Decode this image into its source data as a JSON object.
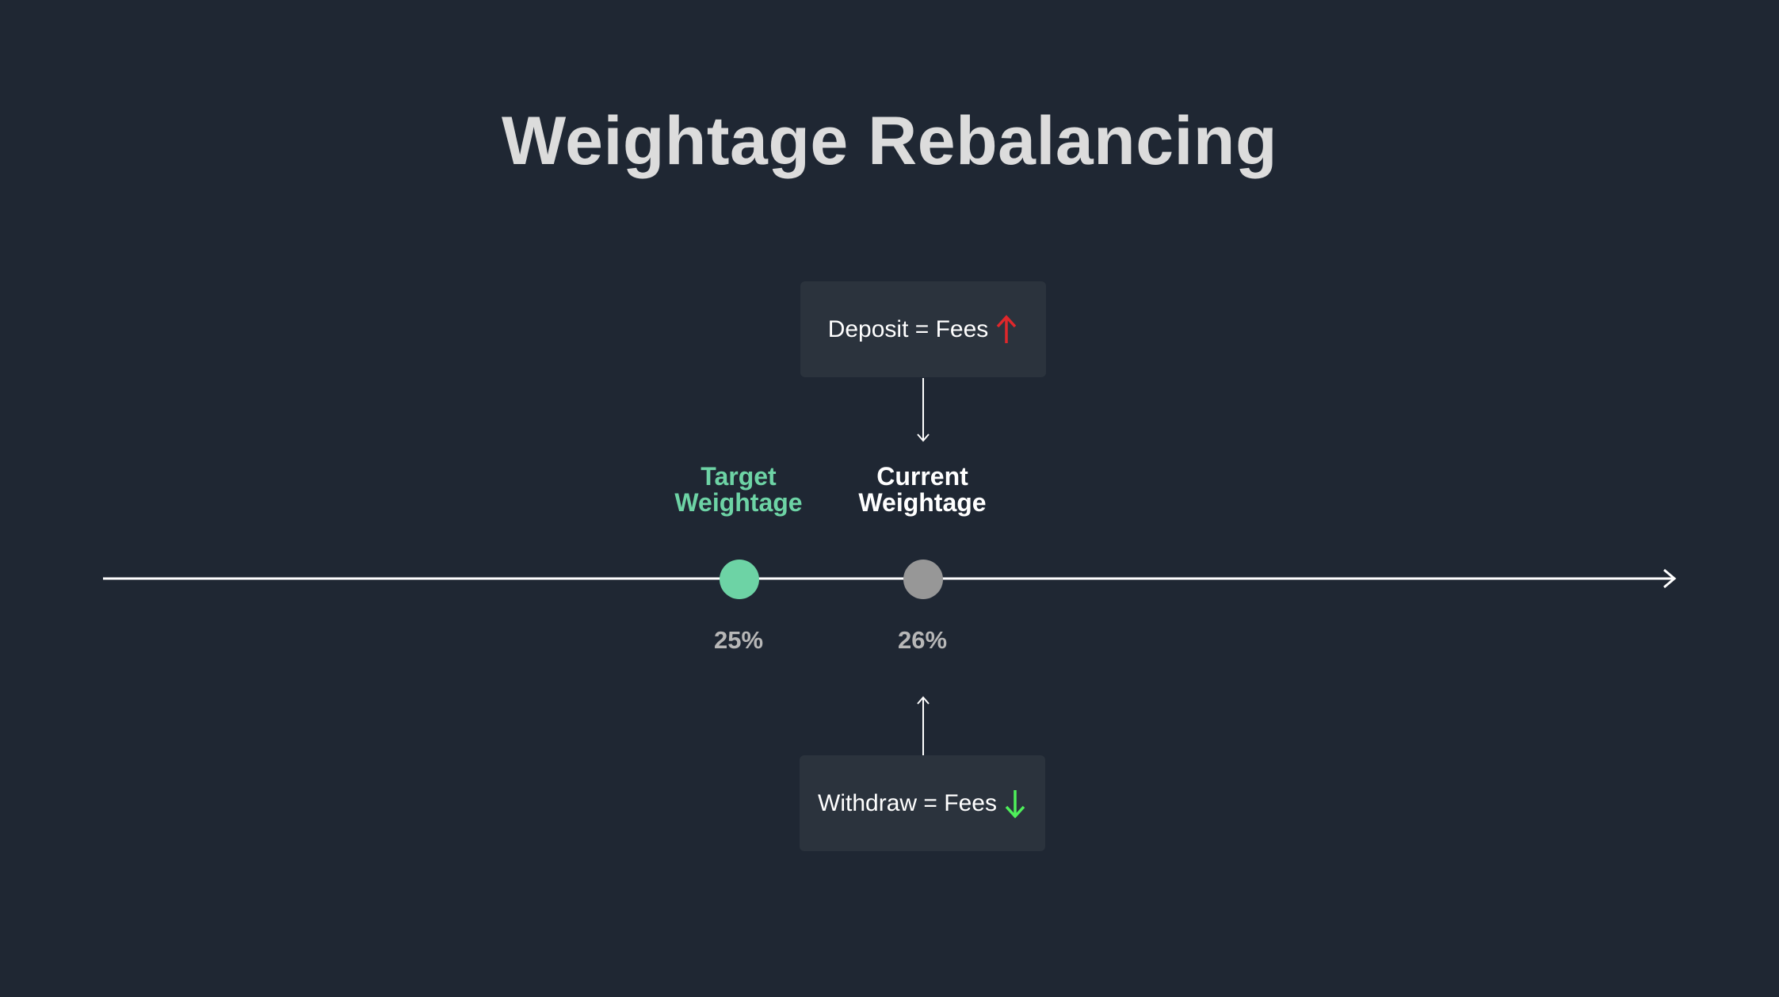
{
  "title": "Weightage Rebalancing",
  "deposit_box": {
    "text": "Deposit = Fees",
    "arrow_icon": "arrow-up-icon",
    "arrow_color": "#e0272b"
  },
  "withdraw_box": {
    "text": "Withdraw = Fees",
    "arrow_icon": "arrow-down-icon",
    "arrow_color": "#4ef05a"
  },
  "target": {
    "label_line1": "Target",
    "label_line2": "Weightage",
    "value": "25%",
    "color": "#6dd3a5"
  },
  "current": {
    "label_line1": "Current",
    "label_line2": "Weightage",
    "value": "26%",
    "color": "#979797"
  },
  "colors": {
    "background": "#1f2733",
    "box": "#2b333d",
    "line": "#ffffff"
  }
}
